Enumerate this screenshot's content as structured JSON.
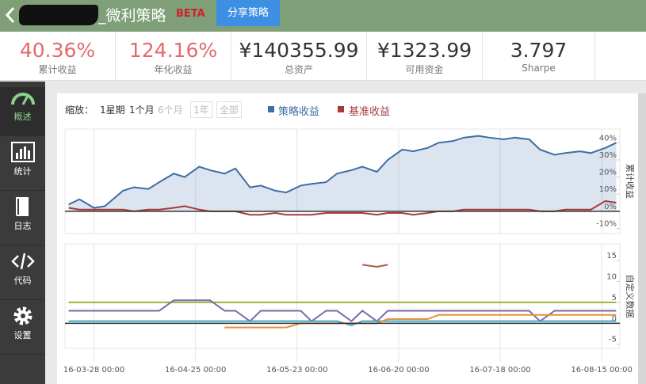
{
  "header": {
    "title": "_微利策略",
    "badge": "BETA",
    "share_button": "分享策略"
  },
  "stats": [
    {
      "value": "40.36%",
      "label": "累计收益"
    },
    {
      "value": "124.16%",
      "label": "年化收益"
    },
    {
      "value": "¥140355.99",
      "label": "总资产"
    },
    {
      "value": "¥1323.99",
      "label": "可用资金"
    },
    {
      "value": "3.797",
      "label": "Sharpe"
    }
  ],
  "sidebar": [
    "概述",
    "统计",
    "日志",
    "代码",
    "设置"
  ],
  "toolbar": {
    "zoom_label": "缩放：",
    "options": [
      "1星期",
      "1个月",
      "6个月",
      "1年",
      "全部"
    ]
  },
  "chart_data": [
    {
      "type": "line",
      "axis_title": "累计收益",
      "x": [
        "16-03-21",
        "16-03-24",
        "16-03-28",
        "16-03-31",
        "16-04-05",
        "16-04-08",
        "16-04-12",
        "16-04-15",
        "16-04-19",
        "16-04-22",
        "16-04-26",
        "16-04-29",
        "16-05-03",
        "16-05-06",
        "16-05-10",
        "16-05-13",
        "16-05-17",
        "16-05-20",
        "16-05-24",
        "16-05-27",
        "16-05-31",
        "16-06-03",
        "16-06-07",
        "16-06-10",
        "16-06-14",
        "16-06-17",
        "16-06-21",
        "16-06-24",
        "16-06-28",
        "16-07-01",
        "16-07-05",
        "16-07-08",
        "16-07-12",
        "16-07-15",
        "16-07-19",
        "16-07-22",
        "16-07-26",
        "16-07-29",
        "16-08-02",
        "16-08-05",
        "16-08-09",
        "16-08-12",
        "16-08-16",
        "16-08-19"
      ],
      "xlim": [
        "16-03-20",
        "16-08-20"
      ],
      "xticks": [
        {
          "value": "16-03-28",
          "label": "16-03-28 00:00"
        },
        {
          "value": "16-04-25",
          "label": "16-04-25 00:00"
        },
        {
          "value": "16-05-23",
          "label": "16-05-23 00:00"
        },
        {
          "value": "16-06-20",
          "label": "16-06-20 00:00"
        },
        {
          "value": "16-07-18",
          "label": "16-07-18 00:00"
        },
        {
          "value": "16-08-15",
          "label": "16-08-15 00:00"
        }
      ],
      "ylim": [
        -13,
        48
      ],
      "yticks": [
        {
          "value": 40,
          "label": "40%"
        },
        {
          "value": 30,
          "label": "30%"
        },
        {
          "value": 20,
          "label": "20%"
        },
        {
          "value": 10,
          "label": "10%"
        },
        {
          "value": 0,
          "label": "0%"
        },
        {
          "value": -10,
          "label": "-10%"
        }
      ],
      "series": [
        {
          "name": "策略收益",
          "color": "#3d6ea5",
          "area": true,
          "values": [
            4,
            7,
            2,
            3,
            12,
            14,
            13,
            17,
            22,
            20,
            26,
            24,
            22,
            25,
            14,
            15,
            12,
            11,
            15,
            16,
            17,
            22,
            24,
            26,
            23,
            30,
            36,
            35,
            37,
            40,
            41,
            43,
            44,
            43,
            42,
            43,
            42,
            36,
            33,
            34,
            35,
            34,
            37,
            40
          ]
        },
        {
          "name": "基准收益",
          "color": "#a63a3a",
          "values": [
            2,
            1,
            1,
            1,
            1,
            0,
            1,
            1,
            2,
            3,
            1,
            0,
            0,
            0,
            -2,
            -2,
            -1,
            -2,
            -2,
            -2,
            -1,
            -1,
            -1,
            -1,
            -2,
            -1,
            -1,
            -2,
            -1,
            0,
            0,
            1,
            1,
            1,
            1,
            1,
            1,
            0,
            0,
            1,
            1,
            1,
            6,
            5
          ]
        }
      ]
    },
    {
      "type": "line",
      "axis_title": "自定义数据",
      "x": [
        "16-03-21",
        "16-03-24",
        "16-03-28",
        "16-03-31",
        "16-04-05",
        "16-04-08",
        "16-04-12",
        "16-04-15",
        "16-04-19",
        "16-04-22",
        "16-04-26",
        "16-04-29",
        "16-05-03",
        "16-05-06",
        "16-05-10",
        "16-05-13",
        "16-05-17",
        "16-05-20",
        "16-05-24",
        "16-05-27",
        "16-05-31",
        "16-06-03",
        "16-06-07",
        "16-06-10",
        "16-06-14",
        "16-06-17",
        "16-06-21",
        "16-06-24",
        "16-06-28",
        "16-07-01",
        "16-07-05",
        "16-07-08",
        "16-07-12",
        "16-07-15",
        "16-07-19",
        "16-07-22",
        "16-07-26",
        "16-07-29",
        "16-08-02",
        "16-08-05",
        "16-08-09",
        "16-08-12",
        "16-08-16",
        "16-08-19"
      ],
      "xlim": [
        "16-03-20",
        "16-08-20"
      ],
      "xticks": [
        {
          "value": "16-03-28",
          "label": "16-03-28 00:00"
        },
        {
          "value": "16-04-25",
          "label": "16-04-25 00:00"
        },
        {
          "value": "16-05-23",
          "label": "16-05-23 00:00"
        },
        {
          "value": "16-06-20",
          "label": "16-06-20 00:00"
        },
        {
          "value": "16-07-18",
          "label": "16-07-18 00:00"
        },
        {
          "value": "16-08-15",
          "label": "16-08-15 00:00"
        }
      ],
      "ylim": [
        -6,
        19
      ],
      "yticks": [
        15,
        10,
        5,
        0,
        -5
      ],
      "series": [
        {
          "color": "#9db23c",
          "values": [
            5,
            5,
            5,
            5,
            5,
            5,
            5,
            5,
            5,
            5,
            5,
            5,
            5,
            5,
            5,
            5,
            5,
            5,
            5,
            5,
            5,
            5,
            5,
            5,
            5,
            5,
            5,
            5,
            5,
            5,
            5,
            5,
            5,
            5,
            5,
            5,
            5,
            5,
            5,
            5,
            5,
            5,
            5,
            5
          ]
        },
        {
          "color": "#7f6aa8",
          "values": [
            3,
            3,
            3,
            3,
            3,
            3,
            3,
            3,
            5.5,
            5.5,
            5.5,
            5.5,
            3,
            3,
            0.5,
            3,
            3,
            3,
            3,
            0.5,
            3,
            3,
            0.5,
            3,
            0.5,
            3,
            3,
            3,
            3,
            3,
            3,
            3,
            3,
            3,
            3,
            3,
            3,
            0.5,
            3,
            3,
            3,
            3,
            3,
            3
          ]
        },
        {
          "color": "#3ea7c4",
          "values": [
            0.5,
            0.5,
            0.5,
            0.5,
            0.5,
            0.5,
            0.5,
            0.5,
            0.5,
            0.5,
            0.5,
            0.5,
            0.5,
            0.5,
            0.5,
            0.5,
            0.5,
            0.5,
            0.5,
            0.5,
            0.5,
            0.5,
            -0.5,
            0.5,
            0.5,
            0.5,
            0.5,
            0.5,
            0.5,
            0.5,
            0.5,
            0.5,
            0.5,
            0.5,
            0.5,
            0.5,
            0.5,
            0.5,
            0.5,
            0.5,
            0.5,
            0.5,
            0.5,
            0.5
          ]
        },
        {
          "color": "#e3923b",
          "values": [
            null,
            null,
            null,
            null,
            null,
            null,
            null,
            null,
            null,
            null,
            null,
            null,
            -1,
            -1,
            -1,
            -1,
            -1,
            -1,
            0,
            0,
            0,
            0,
            0,
            0,
            0,
            1,
            1,
            1,
            1,
            2,
            2,
            2,
            2,
            2,
            2,
            2,
            2,
            2,
            2,
            2,
            2,
            2,
            2,
            2
          ]
        },
        {
          "color": "#a85b4c",
          "values": [
            null,
            null,
            null,
            null,
            null,
            null,
            null,
            null,
            null,
            null,
            null,
            null,
            null,
            null,
            null,
            null,
            null,
            null,
            null,
            null,
            null,
            null,
            null,
            14,
            13.5,
            14,
            null,
            null,
            null,
            null,
            null,
            null,
            null,
            null,
            null,
            null,
            null,
            null,
            null,
            null,
            null,
            null,
            null,
            null
          ]
        }
      ]
    }
  ]
}
